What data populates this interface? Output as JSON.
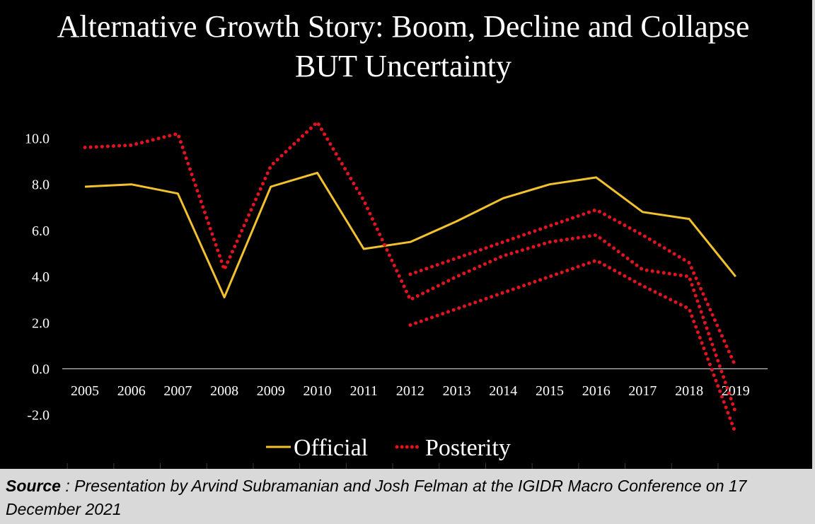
{
  "chart_data": {
    "type": "line",
    "title": "Alternative Growth Story: Boom, Decline and Collapse",
    "subtitle": "BUT Uncertainty",
    "x": [
      "2005",
      "2006",
      "2007",
      "2008",
      "2009",
      "2010",
      "2011",
      "2012",
      "2013",
      "2014",
      "2015",
      "2016",
      "2017",
      "2018",
      "2019"
    ],
    "y_ticks": [
      "10.0",
      "8.0",
      "6.0",
      "4.0",
      "2.0",
      "0.0",
      "-2.0"
    ],
    "ylim": [
      -3.5,
      11.5
    ],
    "legend_position": "bottom",
    "grid": false,
    "series": [
      {
        "name": "Official",
        "color": "#f2c12e",
        "style": "solid",
        "points": [
          [
            2005,
            7.9
          ],
          [
            2006,
            8.0
          ],
          [
            2007,
            7.6
          ],
          [
            2008,
            3.1
          ],
          [
            2009,
            7.9
          ],
          [
            2010,
            8.5
          ],
          [
            2011,
            5.2
          ],
          [
            2012,
            5.5
          ],
          [
            2013,
            6.4
          ],
          [
            2014,
            7.4
          ],
          [
            2015,
            8.0
          ],
          [
            2016,
            8.3
          ],
          [
            2017,
            6.8
          ],
          [
            2018,
            6.5
          ],
          [
            2019,
            4.0
          ]
        ]
      },
      {
        "name": "Posterity",
        "color": "#e0141e",
        "style": "dotted",
        "points": [
          [
            2005,
            9.6
          ],
          [
            2006,
            9.7
          ],
          [
            2007,
            10.2
          ],
          [
            2008,
            4.3
          ],
          [
            2009,
            8.8
          ],
          [
            2010,
            10.7
          ],
          [
            2011,
            7.3
          ],
          [
            2012,
            3.0
          ],
          [
            2013,
            4.0
          ],
          [
            2014,
            4.9
          ],
          [
            2015,
            5.5
          ],
          [
            2016,
            5.8
          ],
          [
            2017,
            4.3
          ],
          [
            2018,
            4.0
          ],
          [
            2019,
            -1.9
          ]
        ]
      },
      {
        "name": "",
        "color": "#e0141e",
        "style": "dotted",
        "points": [
          [
            2012,
            4.1
          ],
          [
            2013,
            4.8
          ],
          [
            2014,
            5.5
          ],
          [
            2015,
            6.2
          ],
          [
            2016,
            6.9
          ],
          [
            2017,
            5.8
          ],
          [
            2018,
            4.6
          ],
          [
            2019,
            0.1
          ]
        ]
      },
      {
        "name": "",
        "color": "#e0141e",
        "style": "dotted",
        "points": [
          [
            2012,
            1.9
          ],
          [
            2013,
            2.6
          ],
          [
            2014,
            3.3
          ],
          [
            2015,
            4.0
          ],
          [
            2016,
            4.7
          ],
          [
            2017,
            3.6
          ],
          [
            2018,
            2.6
          ],
          [
            2019,
            -2.8
          ]
        ]
      }
    ]
  },
  "caption": {
    "label": "Source",
    "text": " : Presentation by Arvind Subramanian and Josh Felman at the IGIDR Macro Conference on 17 December 2021"
  }
}
